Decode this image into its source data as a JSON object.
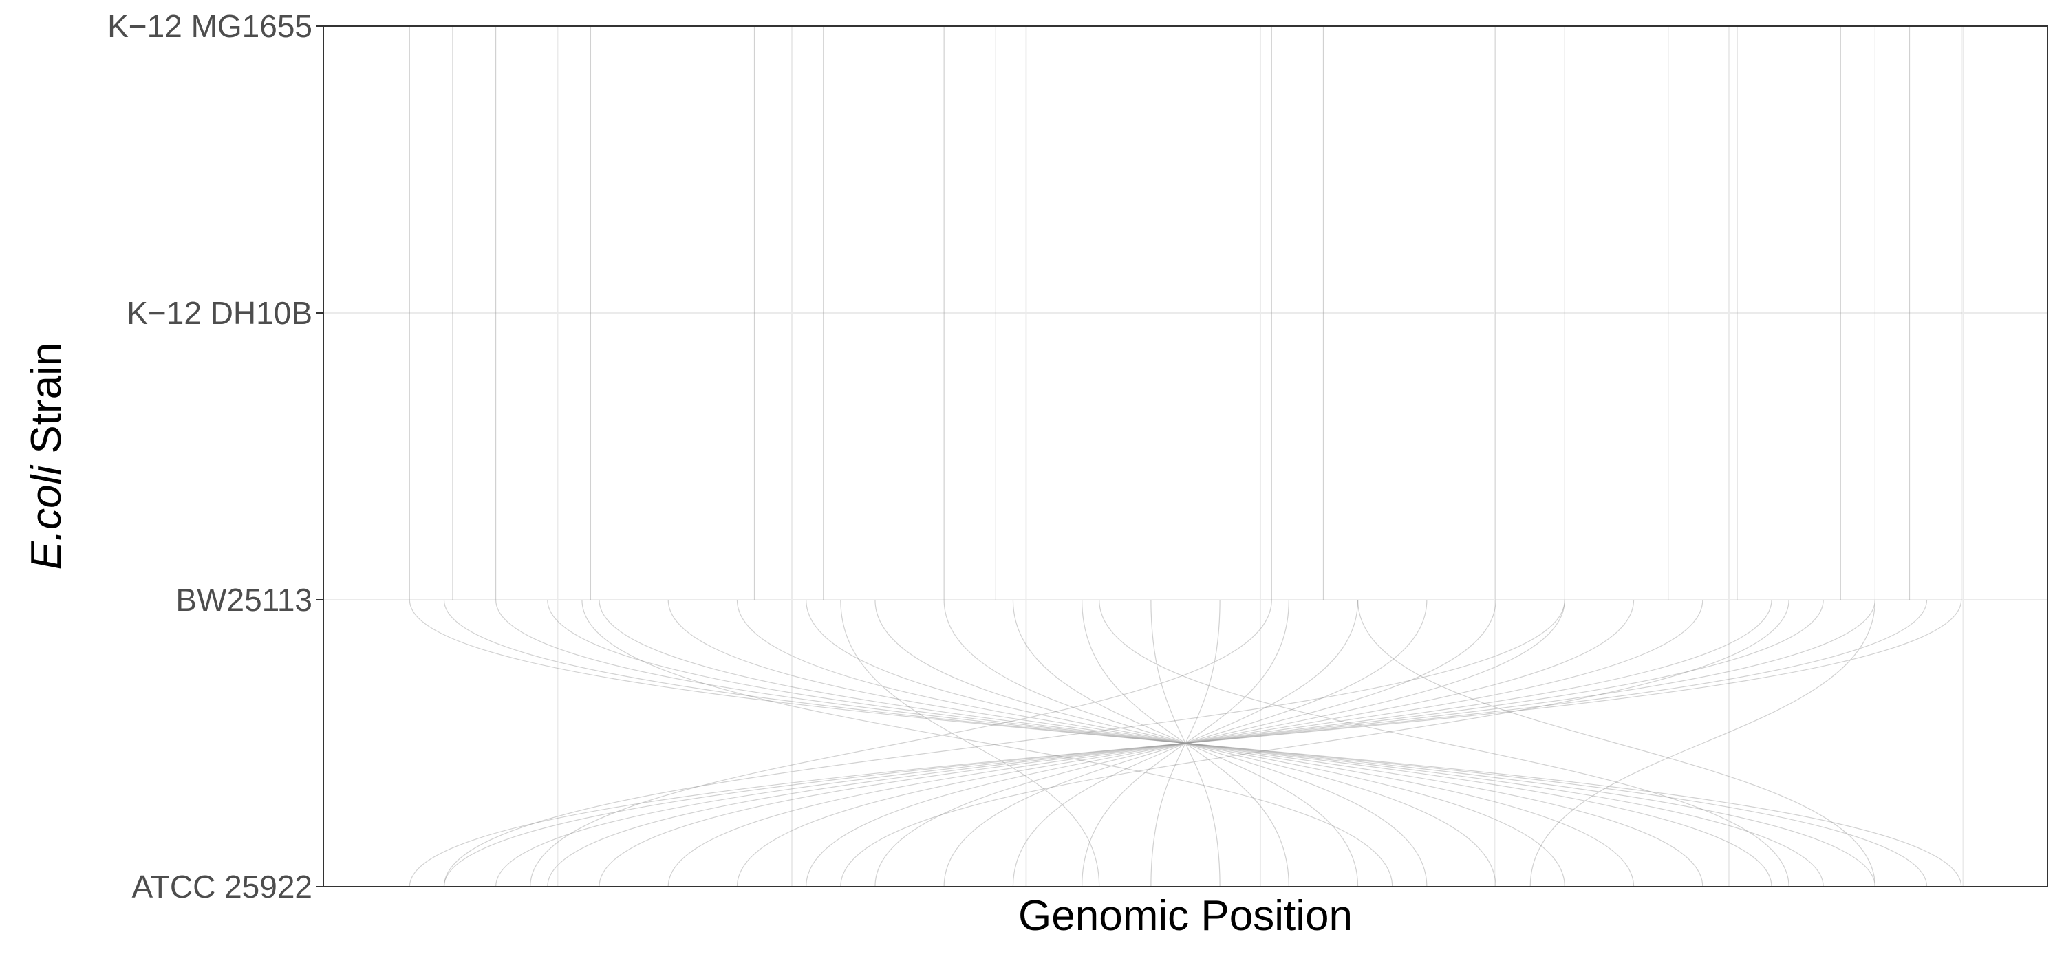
{
  "chart_data": {
    "type": "parallel-coordinates",
    "title": "",
    "xlabel": "Genomic Position",
    "ylabel": {
      "italic_part": "E.coli",
      "rest": " Strain"
    },
    "y_categories": [
      "ATCC 25922",
      "BW25113",
      "K−12 DH10B",
      "K−12 MG1655"
    ],
    "x_ticks_shown": false,
    "grid": true,
    "legend": "none",
    "line_color": "#9a9a9a",
    "background_color": "#ffffff",
    "grid_color": "#ebebeb",
    "segments": [
      {
        "from": "BW25113",
        "to": "K−12 DH10B",
        "mappings": [
          [
            0.05,
            0.05
          ],
          [
            0.075,
            0.075
          ],
          [
            0.1,
            0.1
          ],
          [
            0.155,
            0.155
          ],
          [
            0.25,
            0.25
          ],
          [
            0.29,
            0.29
          ],
          [
            0.36,
            0.36
          ],
          [
            0.39,
            0.39
          ],
          [
            0.55,
            0.55
          ],
          [
            0.58,
            0.58
          ],
          [
            0.68,
            0.68
          ],
          [
            0.72,
            0.72
          ],
          [
            0.78,
            0.78
          ],
          [
            0.82,
            0.82
          ],
          [
            0.88,
            0.88
          ],
          [
            0.9,
            0.9
          ],
          [
            0.92,
            0.92
          ],
          [
            0.95,
            0.95
          ]
        ]
      },
      {
        "from": "K−12 DH10B",
        "to": "K−12 MG1655",
        "mappings": [
          [
            0.05,
            0.05
          ],
          [
            0.075,
            0.075
          ],
          [
            0.1,
            0.1
          ],
          [
            0.155,
            0.155
          ],
          [
            0.25,
            0.25
          ],
          [
            0.29,
            0.29
          ],
          [
            0.36,
            0.36
          ],
          [
            0.39,
            0.39
          ],
          [
            0.55,
            0.55
          ],
          [
            0.58,
            0.58
          ],
          [
            0.68,
            0.68
          ],
          [
            0.72,
            0.72
          ],
          [
            0.78,
            0.78
          ],
          [
            0.82,
            0.82
          ],
          [
            0.88,
            0.88
          ],
          [
            0.9,
            0.9
          ],
          [
            0.92,
            0.92
          ],
          [
            0.95,
            0.95
          ]
        ]
      },
      {
        "from": "ATCC 25922",
        "to": "BW25113",
        "mappings": [
          [
            0.05,
            0.95
          ],
          [
            0.07,
            0.93
          ],
          [
            0.1,
            0.9
          ],
          [
            0.13,
            0.87
          ],
          [
            0.16,
            0.84
          ],
          [
            0.2,
            0.8
          ],
          [
            0.24,
            0.76
          ],
          [
            0.28,
            0.72
          ],
          [
            0.32,
            0.68
          ],
          [
            0.36,
            0.64
          ],
          [
            0.4,
            0.6
          ],
          [
            0.44,
            0.56
          ],
          [
            0.48,
            0.52
          ],
          [
            0.52,
            0.48
          ],
          [
            0.56,
            0.44
          ],
          [
            0.6,
            0.4
          ],
          [
            0.64,
            0.36
          ],
          [
            0.68,
            0.32
          ],
          [
            0.72,
            0.28
          ],
          [
            0.76,
            0.24
          ],
          [
            0.8,
            0.2
          ],
          [
            0.84,
            0.16
          ],
          [
            0.87,
            0.13
          ],
          [
            0.9,
            0.1
          ],
          [
            0.93,
            0.07
          ],
          [
            0.95,
            0.05
          ],
          [
            0.07,
            0.72
          ],
          [
            0.12,
            0.55
          ],
          [
            0.3,
            0.85
          ],
          [
            0.45,
            0.3
          ],
          [
            0.62,
            0.15
          ],
          [
            0.7,
            0.9
          ],
          [
            0.85,
            0.45
          ],
          [
            0.9,
            0.6
          ]
        ]
      }
    ]
  }
}
